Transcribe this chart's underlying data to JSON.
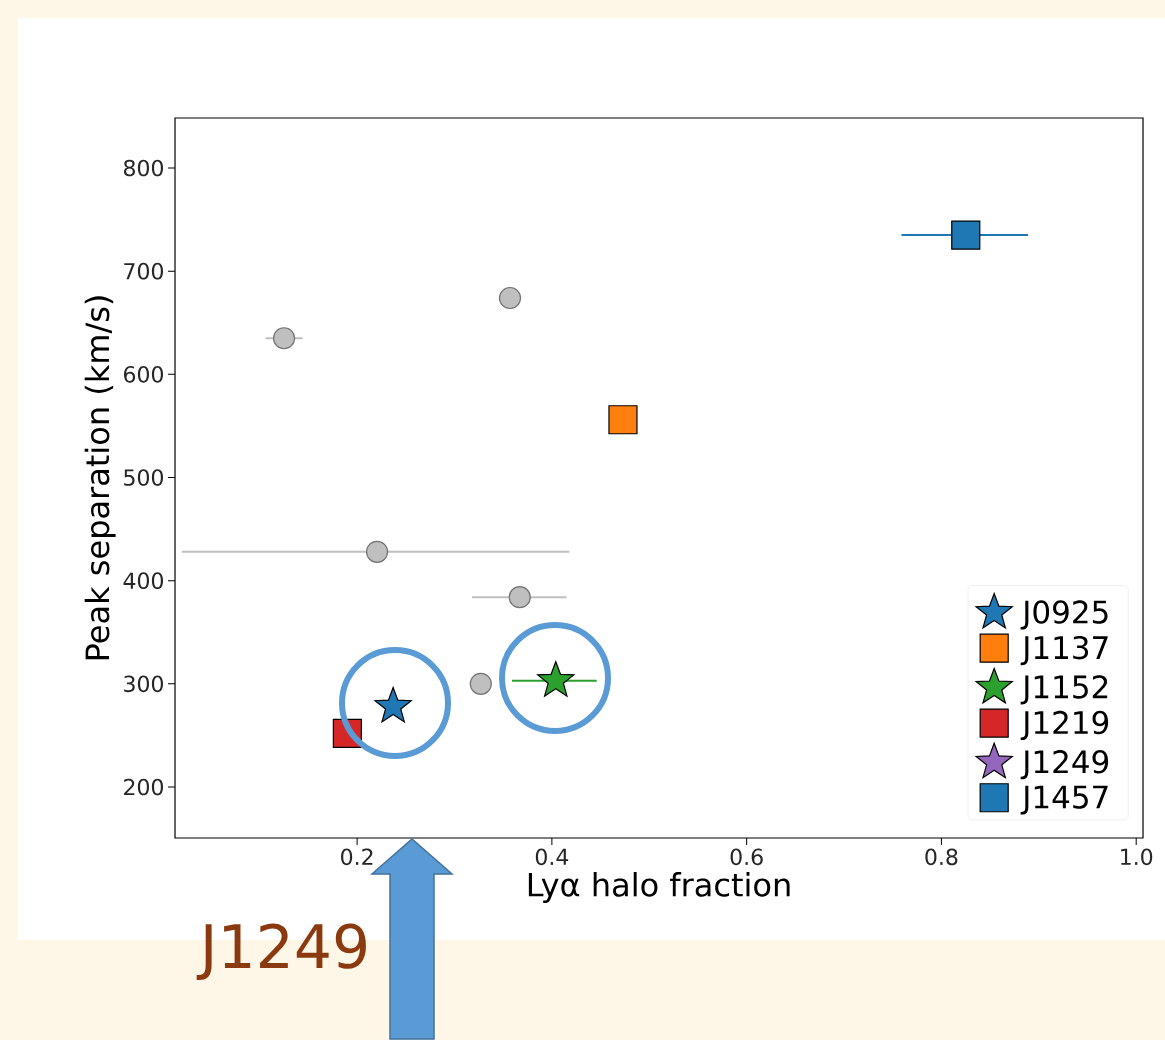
{
  "chart_data": {
    "type": "scatter",
    "xlabel": "Lyα halo fraction",
    "ylabel": "Peak separation (km/s)",
    "xlim": [
      0.013,
      1.007
    ],
    "ylim": [
      150.6,
      848.5
    ],
    "xticks": [
      0.2,
      0.4,
      0.6,
      0.8,
      {
        "value": 1.0,
        "label": "1.0"
      }
    ],
    "yticks": [
      200,
      300,
      400,
      500,
      600,
      700,
      800
    ],
    "legend": "bottom right",
    "annotations": [
      "J1249"
    ],
    "series": [
      {
        "x": [
          0.125,
          0.357,
          0.2205,
          0.367,
          0.327
        ],
        "values": [
          635,
          674,
          428,
          384,
          300
        ],
        "xerrors": [
          [
            0.106,
            0.144
          ],
          [
            0.347,
            0.367
          ],
          [
            0.02,
            0.418
          ],
          [
            0.318,
            0.415
          ],
          [
            0.317,
            0.337
          ]
        ],
        "color": "#bfbfbf",
        "marker": "circle"
      },
      {
        "name": "J0925",
        "x": [
          0.237
        ],
        "values": [
          278
        ],
        "color": "#1f77b4",
        "marker": "star"
      },
      {
        "name": "J1137",
        "x": [
          0.473
        ],
        "values": [
          556
        ],
        "color": "#ff7f0e",
        "marker": "square"
      },
      {
        "name": "J1152",
        "x": [
          0.404
        ],
        "values": [
          303
        ],
        "xerrors": [
          [
            0.359,
            0.446
          ]
        ],
        "color": "#2ca02c",
        "marker": "star"
      },
      {
        "name": "J1219",
        "x": [
          0.19
        ],
        "values": [
          252
        ],
        "color": "#d62728",
        "marker": "square"
      },
      {
        "name": "J1249",
        "x": [
          null
        ],
        "values": [
          null
        ],
        "color": "#9467bd",
        "marker": "star"
      },
      {
        "name": "J1457",
        "x": [
          0.825
        ],
        "values": [
          735
        ],
        "xerrors": [
          [
            0.759,
            0.889
          ]
        ],
        "color": "#1f77b4",
        "marker": "square"
      }
    ]
  }
}
